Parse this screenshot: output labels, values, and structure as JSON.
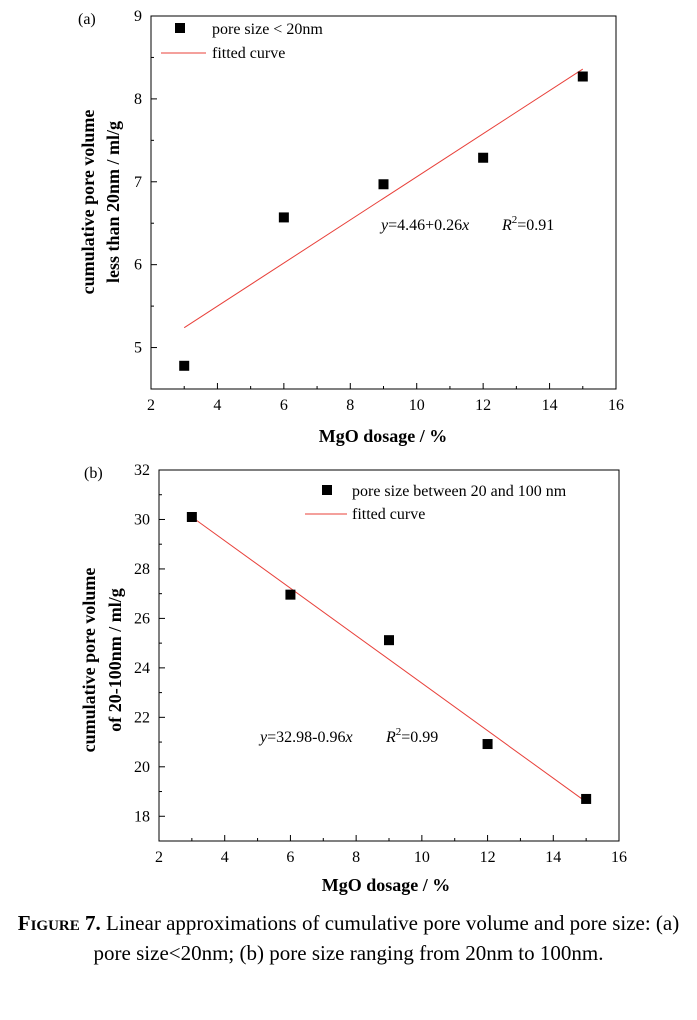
{
  "chart_data": [
    {
      "type": "scatter",
      "panel_label": "(a)",
      "xlabel": "MgO dosage / %",
      "ylabel_lines": [
        "cumulative pore volume",
        "less than 20nm / ml/g"
      ],
      "xlim": [
        2,
        16
      ],
      "ylim": [
        4.5,
        9
      ],
      "xticks": [
        2,
        4,
        6,
        8,
        10,
        12,
        14,
        16
      ],
      "yticks": [
        5,
        6,
        7,
        8,
        9
      ],
      "series": [
        {
          "name": "pore size < 20nm",
          "x": [
            3,
            6,
            9,
            12,
            15
          ],
          "y": [
            4.78,
            6.57,
            6.97,
            7.29,
            8.27
          ]
        }
      ],
      "fit": {
        "name": "fitted curve",
        "intercept": 4.46,
        "slope": 0.26,
        "x_range": [
          3,
          15
        ],
        "color": "#e8403a"
      },
      "equation_y": "y",
      "equation_rest": "=4.46+0.26",
      "equation_x": "x",
      "r_label": "R",
      "r_sup": "2",
      "r_value": "=0.91",
      "legend_position": "top-left"
    },
    {
      "type": "scatter",
      "panel_label": "(b)",
      "xlabel": "MgO dosage / %",
      "ylabel_lines": [
        "cumulative pore volume",
        "of 20-100nm / ml/g"
      ],
      "xlim": [
        2,
        16
      ],
      "ylim": [
        17,
        32
      ],
      "xticks": [
        2,
        4,
        6,
        8,
        10,
        12,
        14,
        16
      ],
      "yticks": [
        18,
        20,
        22,
        24,
        26,
        28,
        30,
        32
      ],
      "series": [
        {
          "name": "pore size between 20 and 100 nm",
          "x": [
            3,
            6,
            9,
            12,
            15
          ],
          "y": [
            30.1,
            26.96,
            25.12,
            20.92,
            18.7
          ]
        }
      ],
      "fit": {
        "name": "fitted curve",
        "intercept": 32.98,
        "slope": -0.96,
        "x_range": [
          3,
          15
        ],
        "color": "#e8403a"
      },
      "equation_y": "y",
      "equation_rest": "=32.98-0.96",
      "equation_x": "x",
      "r_label": "R",
      "r_sup": "2",
      "r_value": "=0.99",
      "legend_position": "top-right"
    }
  ],
  "caption": {
    "label": "Figure 7.",
    "text": " Linear approximations of cumulative pore volume and pore size: (a) pore size<20nm; (b) pore size ranging from 20nm to 100nm."
  }
}
